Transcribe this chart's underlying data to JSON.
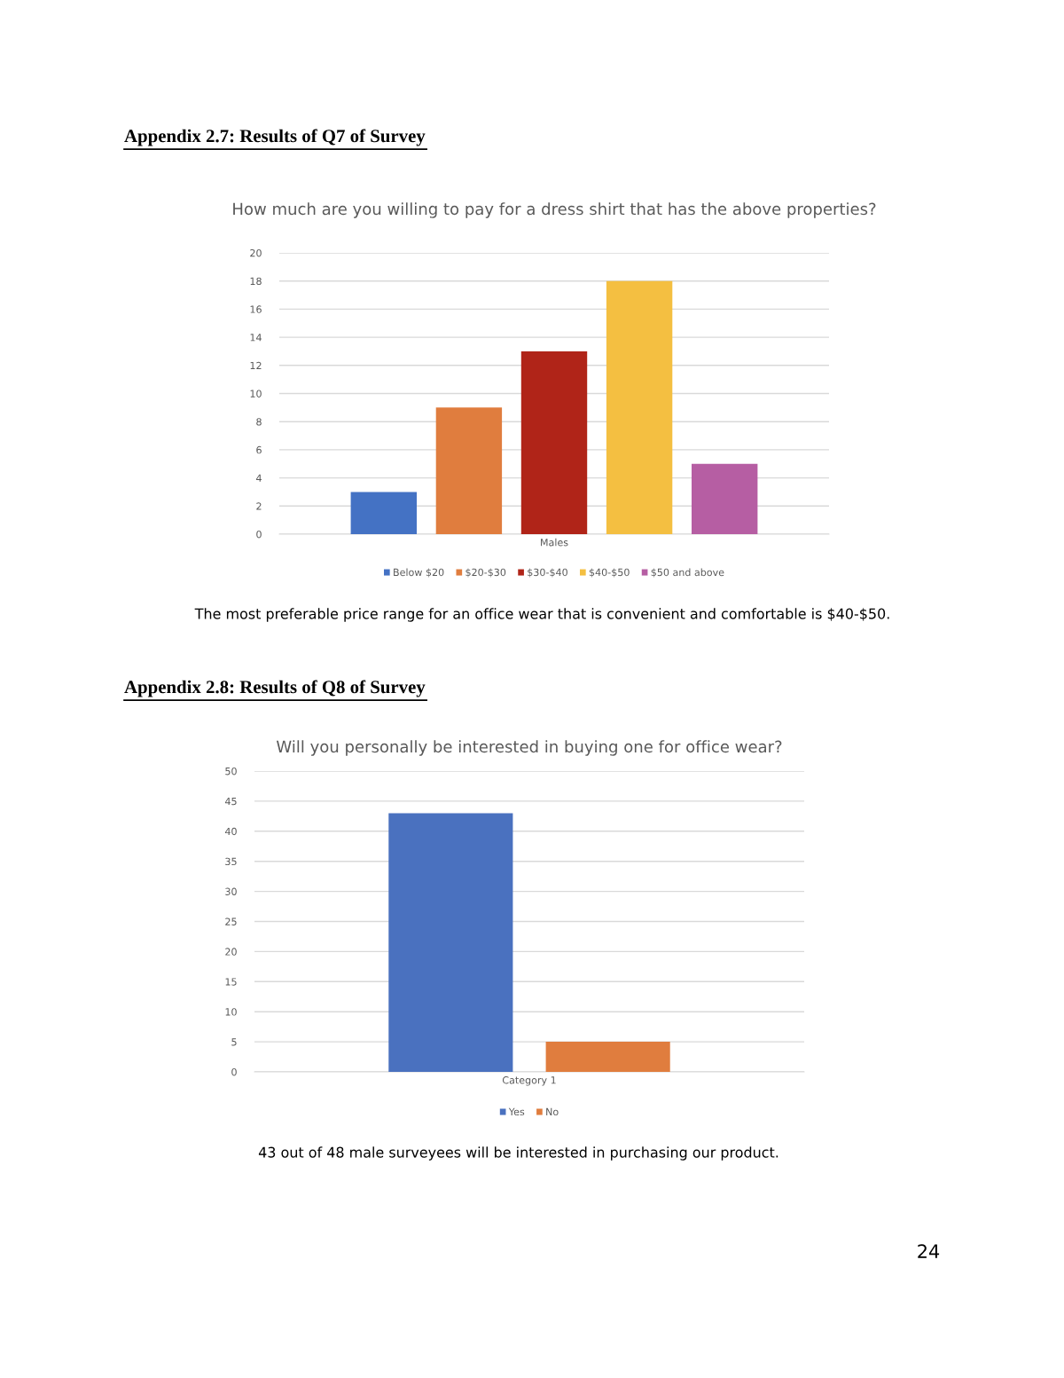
{
  "chart_data": [
    {
      "type": "bar",
      "title": "How much are you willing to pay for a dress shirt that has the above properties?",
      "categories": [
        "Males"
      ],
      "series": [
        {
          "name": "Below $20",
          "color": "#4472c4",
          "values": [
            3
          ]
        },
        {
          "name": "$20-$30",
          "color": "#e07d3e",
          "values": [
            9
          ]
        },
        {
          "name": "$30-$40",
          "color": "#b02418",
          "values": [
            13
          ]
        },
        {
          "name": "$40-$50",
          "color": "#f4bf41",
          "values": [
            18
          ]
        },
        {
          "name": "$50 and above",
          "color": "#b65ea3",
          "values": [
            5
          ]
        }
      ],
      "ylim": [
        0,
        20
      ],
      "yticks": [
        0,
        2,
        4,
        6,
        8,
        10,
        12,
        14,
        16,
        18,
        20
      ],
      "grid": "y",
      "legend": "bottom",
      "annotations": [
        "Appendix 2.7: Results of Q7 of Survey",
        "The most preferable price range for an office wear that is convenient and comfortable is $40-$50."
      ]
    },
    {
      "type": "bar",
      "title": "Will you personally be interested in buying one for office wear?",
      "categories": [
        "Category 1"
      ],
      "series": [
        {
          "name": "Yes",
          "color": "#4a71bf",
          "values": [
            43
          ]
        },
        {
          "name": "No",
          "color": "#e07d3e",
          "values": [
            5
          ]
        }
      ],
      "ylim": [
        0,
        50
      ],
      "yticks": [
        0,
        5,
        10,
        15,
        20,
        25,
        30,
        35,
        40,
        45,
        50
      ],
      "grid": "y",
      "legend": "bottom",
      "annotations": [
        "Appendix 2.8: Results of Q8 of Survey",
        "43 out of 48 male surveyees will be interested in purchasing our product.",
        "24"
      ]
    }
  ]
}
